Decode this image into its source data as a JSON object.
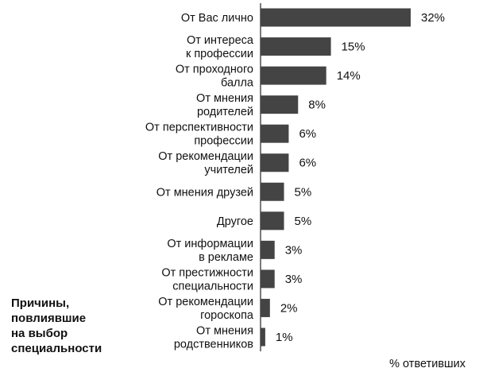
{
  "caption": [
    "Причины,",
    "повлиявшие",
    "на выбор",
    "специальности"
  ],
  "chart_data": {
    "type": "bar",
    "orientation": "horizontal",
    "xlabel": "% ответивших",
    "ylabel": "",
    "title": "",
    "xlim": [
      0,
      32
    ],
    "grid": false,
    "bar_color": "#444444",
    "categories": [
      [
        "От Вас лично"
      ],
      [
        "От интереса",
        "к профессии"
      ],
      [
        "От проходного",
        "балла"
      ],
      [
        "От мнения",
        "родителей"
      ],
      [
        "От перспективности",
        "профессии"
      ],
      [
        "От рекомендации",
        "учителей"
      ],
      [
        "От мнения друзей"
      ],
      [
        "Другое"
      ],
      [
        "От информации",
        "в рекламе"
      ],
      [
        "От престижности",
        "специальности"
      ],
      [
        "От рекомендации",
        "гороскопа"
      ],
      [
        "От мнения",
        "родственников"
      ]
    ],
    "values": [
      32,
      15,
      14,
      8,
      6,
      6,
      5,
      5,
      3,
      3,
      2,
      1
    ],
    "value_labels": [
      "32%",
      "15%",
      "14%",
      "8%",
      "6%",
      "6%",
      "5%",
      "5%",
      "3%",
      "3%",
      "2%",
      "1%"
    ]
  }
}
